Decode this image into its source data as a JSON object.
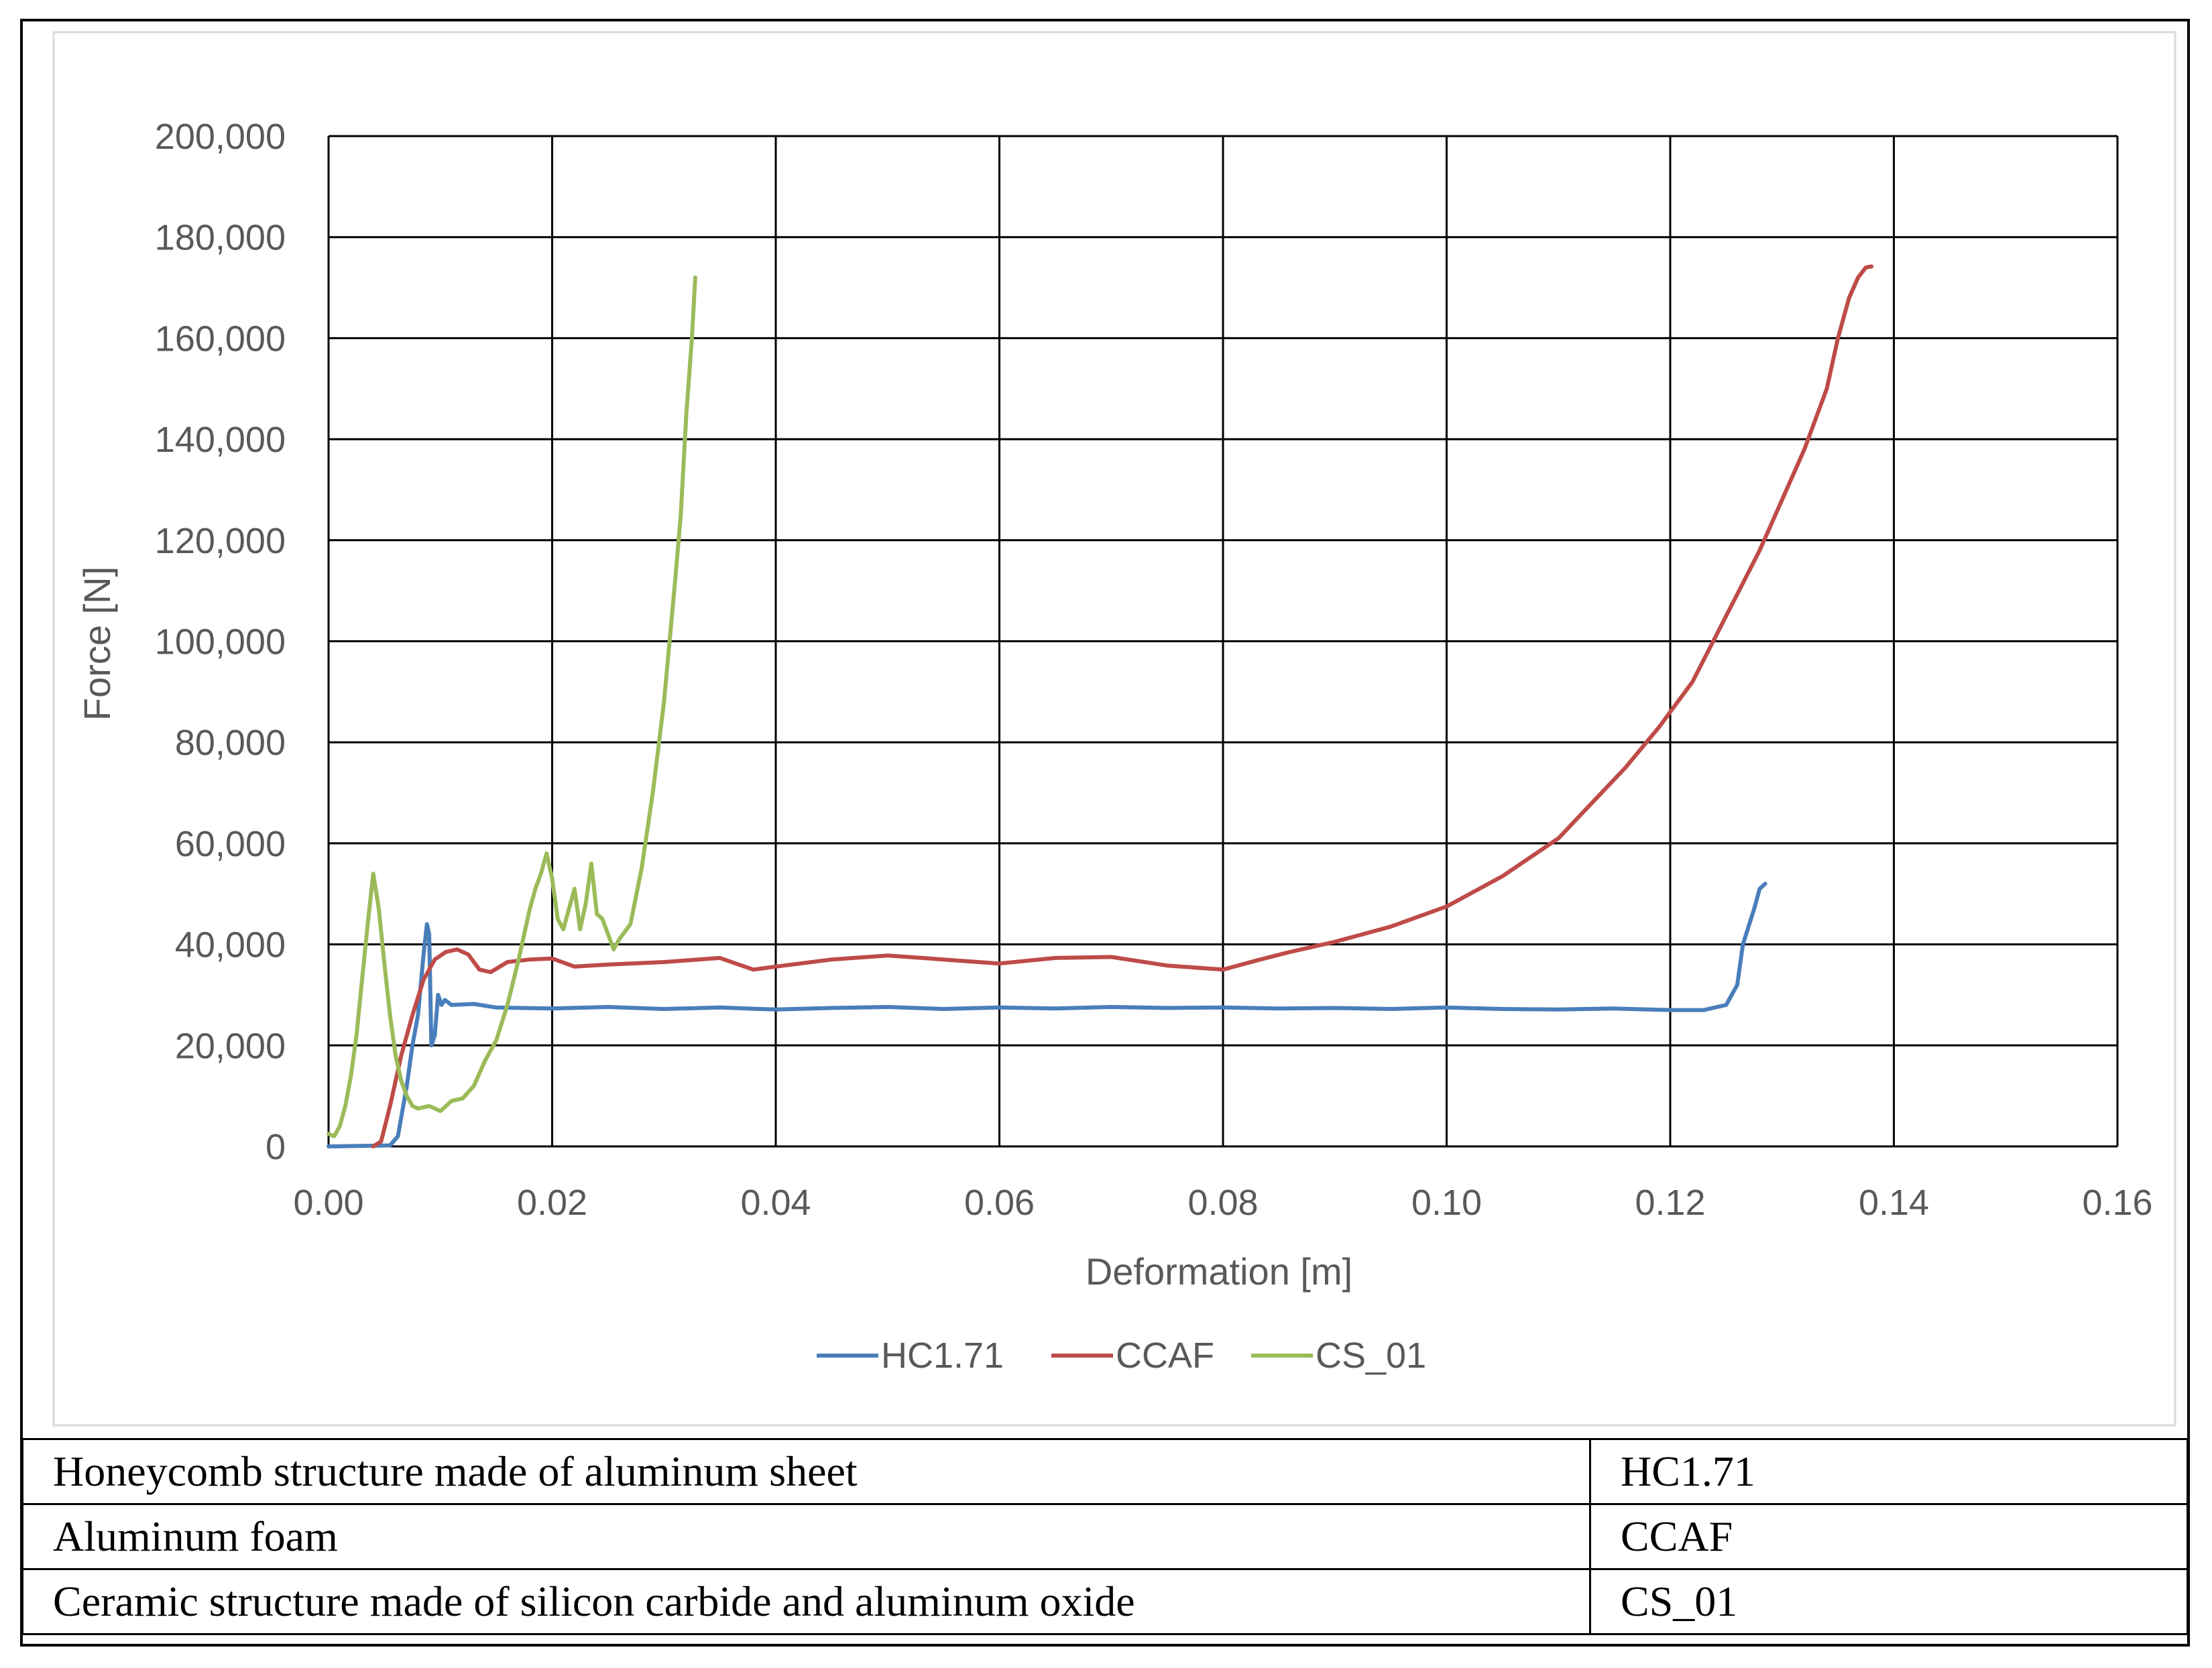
{
  "chart_data": {
    "type": "line",
    "xlabel": "Deformation [m]",
    "ylabel": "Force [N]",
    "xlim": [
      0,
      0.16
    ],
    "ylim": [
      0,
      200000
    ],
    "xticks": [
      "0.00",
      "0.02",
      "0.04",
      "0.06",
      "0.08",
      "0.10",
      "0.12",
      "0.14",
      "0.16"
    ],
    "yticks": [
      "0",
      "20,000",
      "40,000",
      "60,000",
      "80,000",
      "100,000",
      "120,000",
      "140,000",
      "160,000",
      "180,000",
      "200,000"
    ],
    "grid": true,
    "legend_position": "bottom",
    "series": [
      {
        "name": "HC1.71",
        "color": "#4a7ebb",
        "points": [
          [
            0.0,
            0
          ],
          [
            0.0055,
            200
          ],
          [
            0.0062,
            2000
          ],
          [
            0.007,
            12000
          ],
          [
            0.0075,
            20000
          ],
          [
            0.008,
            26000
          ],
          [
            0.0085,
            38000
          ],
          [
            0.0088,
            44000
          ],
          [
            0.009,
            42000
          ],
          [
            0.0092,
            20000
          ],
          [
            0.0095,
            22000
          ],
          [
            0.0098,
            30000
          ],
          [
            0.0101,
            28000
          ],
          [
            0.0104,
            29000
          ],
          [
            0.011,
            28000
          ],
          [
            0.013,
            28200
          ],
          [
            0.015,
            27500
          ],
          [
            0.02,
            27300
          ],
          [
            0.025,
            27600
          ],
          [
            0.03,
            27200
          ],
          [
            0.035,
            27500
          ],
          [
            0.04,
            27100
          ],
          [
            0.045,
            27400
          ],
          [
            0.05,
            27600
          ],
          [
            0.055,
            27200
          ],
          [
            0.06,
            27500
          ],
          [
            0.065,
            27300
          ],
          [
            0.07,
            27600
          ],
          [
            0.075,
            27400
          ],
          [
            0.08,
            27500
          ],
          [
            0.085,
            27300
          ],
          [
            0.09,
            27400
          ],
          [
            0.095,
            27200
          ],
          [
            0.1,
            27500
          ],
          [
            0.105,
            27200
          ],
          [
            0.11,
            27100
          ],
          [
            0.115,
            27300
          ],
          [
            0.12,
            27000
          ],
          [
            0.123,
            27000
          ],
          [
            0.125,
            28000
          ],
          [
            0.126,
            32000
          ],
          [
            0.1265,
            40000
          ],
          [
            0.1275,
            47000
          ],
          [
            0.128,
            51000
          ],
          [
            0.1285,
            52000
          ]
        ]
      },
      {
        "name": "CCAF",
        "color": "#be4b48",
        "points": [
          [
            0.004,
            0
          ],
          [
            0.0047,
            1000
          ],
          [
            0.0055,
            8000
          ],
          [
            0.0065,
            18000
          ],
          [
            0.0075,
            26000
          ],
          [
            0.0085,
            33000
          ],
          [
            0.0095,
            37000
          ],
          [
            0.0105,
            38500
          ],
          [
            0.0115,
            39000
          ],
          [
            0.0125,
            38000
          ],
          [
            0.0135,
            35000
          ],
          [
            0.0145,
            34500
          ],
          [
            0.016,
            36500
          ],
          [
            0.018,
            37000
          ],
          [
            0.02,
            37200
          ],
          [
            0.022,
            35600
          ],
          [
            0.025,
            36000
          ],
          [
            0.03,
            36500
          ],
          [
            0.035,
            37300
          ],
          [
            0.038,
            35000
          ],
          [
            0.04,
            35600
          ],
          [
            0.045,
            37000
          ],
          [
            0.05,
            37800
          ],
          [
            0.055,
            37000
          ],
          [
            0.06,
            36200
          ],
          [
            0.065,
            37300
          ],
          [
            0.07,
            37500
          ],
          [
            0.075,
            35800
          ],
          [
            0.08,
            35000
          ],
          [
            0.083,
            36800
          ],
          [
            0.086,
            38500
          ],
          [
            0.09,
            40500
          ],
          [
            0.095,
            43500
          ],
          [
            0.1,
            47500
          ],
          [
            0.105,
            53500
          ],
          [
            0.11,
            61000
          ],
          [
            0.113,
            68000
          ],
          [
            0.116,
            75000
          ],
          [
            0.119,
            83000
          ],
          [
            0.122,
            92000
          ],
          [
            0.125,
            105000
          ],
          [
            0.128,
            118000
          ],
          [
            0.13,
            128000
          ],
          [
            0.132,
            138000
          ],
          [
            0.134,
            150000
          ],
          [
            0.135,
            160000
          ],
          [
            0.136,
            168000
          ],
          [
            0.1368,
            172000
          ],
          [
            0.1375,
            174000
          ],
          [
            0.138,
            174200
          ]
        ]
      },
      {
        "name": "CS_01",
        "color": "#9bbb59",
        "points": [
          [
            0.0,
            2500
          ],
          [
            0.0005,
            2000
          ],
          [
            0.001,
            4000
          ],
          [
            0.0015,
            8000
          ],
          [
            0.002,
            14000
          ],
          [
            0.0025,
            22000
          ],
          [
            0.003,
            33000
          ],
          [
            0.0035,
            44000
          ],
          [
            0.004,
            54000
          ],
          [
            0.0045,
            47000
          ],
          [
            0.005,
            36000
          ],
          [
            0.0055,
            26000
          ],
          [
            0.006,
            18000
          ],
          [
            0.0065,
            13000
          ],
          [
            0.007,
            10000
          ],
          [
            0.0075,
            8000
          ],
          [
            0.008,
            7500
          ],
          [
            0.009,
            8000
          ],
          [
            0.01,
            7000
          ],
          [
            0.011,
            9000
          ],
          [
            0.012,
            9500
          ],
          [
            0.013,
            12000
          ],
          [
            0.014,
            17000
          ],
          [
            0.015,
            21000
          ],
          [
            0.016,
            28000
          ],
          [
            0.017,
            37000
          ],
          [
            0.018,
            47000
          ],
          [
            0.0185,
            51000
          ],
          [
            0.019,
            54000
          ],
          [
            0.0195,
            58000
          ],
          [
            0.02,
            53000
          ],
          [
            0.0205,
            45000
          ],
          [
            0.021,
            43000
          ],
          [
            0.022,
            51000
          ],
          [
            0.0225,
            43000
          ],
          [
            0.023,
            48000
          ],
          [
            0.0235,
            56000
          ],
          [
            0.024,
            46000
          ],
          [
            0.0245,
            45000
          ],
          [
            0.025,
            42000
          ],
          [
            0.0255,
            39000
          ],
          [
            0.026,
            41000
          ],
          [
            0.027,
            44000
          ],
          [
            0.028,
            55000
          ],
          [
            0.029,
            70000
          ],
          [
            0.03,
            88000
          ],
          [
            0.031,
            112000
          ],
          [
            0.0315,
            125000
          ],
          [
            0.032,
            145000
          ],
          [
            0.0325,
            160000
          ],
          [
            0.0328,
            172000
          ]
        ]
      }
    ]
  },
  "table": {
    "rows": [
      {
        "description": "Honeycomb structure made of aluminum sheet",
        "code": "HC1.71"
      },
      {
        "description": "Aluminum foam",
        "code": "CCAF"
      },
      {
        "description": "Ceramic structure made of silicon carbide and aluminum oxide",
        "code": "CS_01"
      }
    ]
  }
}
